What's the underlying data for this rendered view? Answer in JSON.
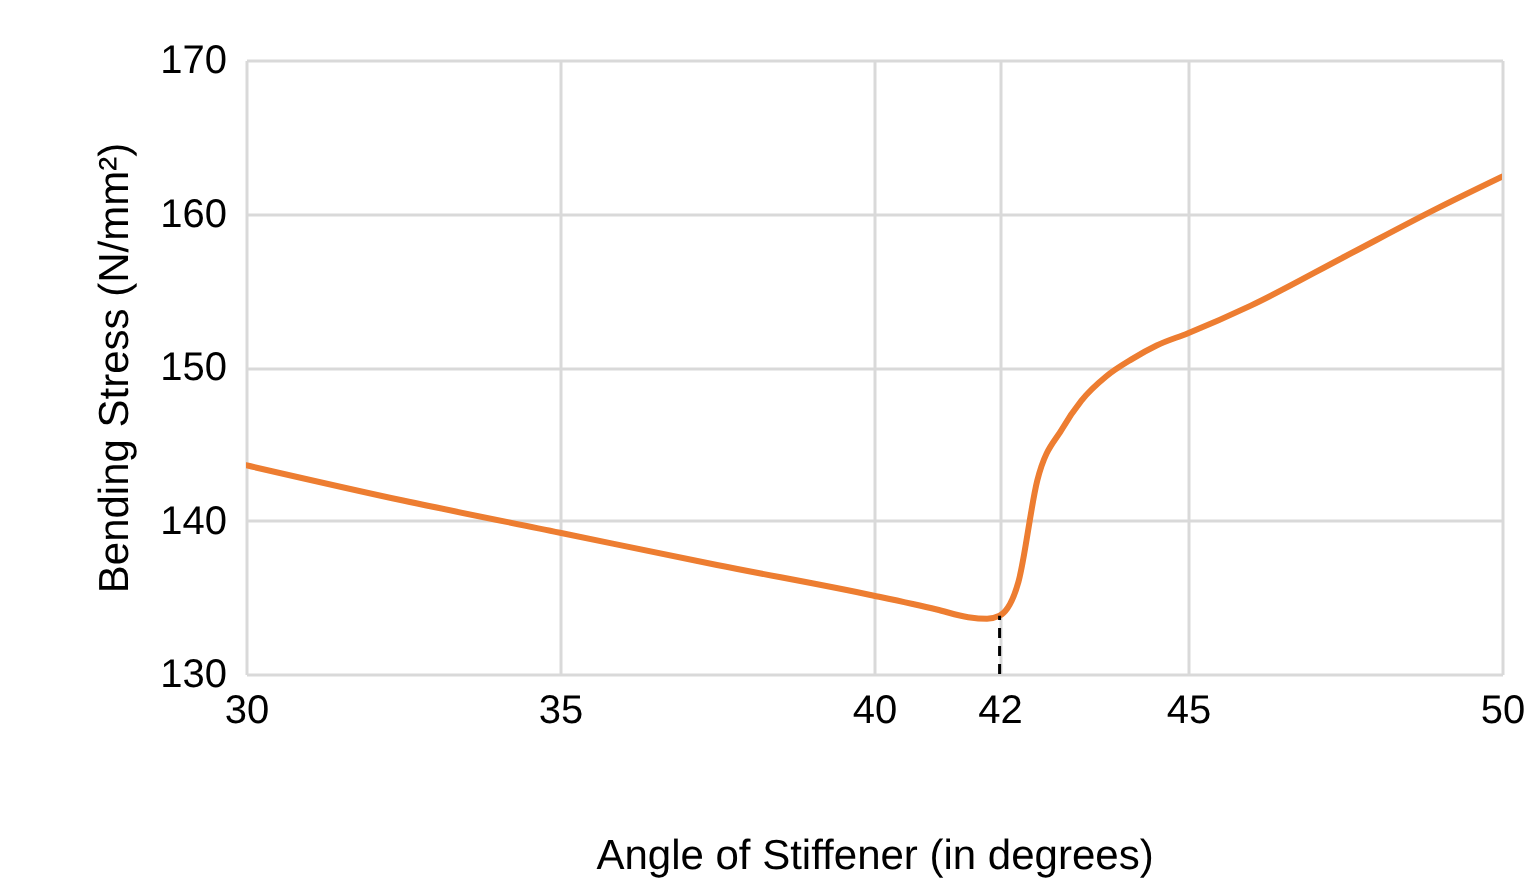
{
  "chart_data": {
    "type": "line",
    "xlabel": "Angle of Stiffener (in degrees)",
    "ylabel": "Bending Stress (N/mm²)",
    "x": [
      30,
      32.5,
      35,
      37.5,
      40,
      41,
      41.5,
      41.8,
      42,
      42.3,
      42.6,
      43,
      43.3,
      43.7,
      44.1,
      44.5,
      45,
      46,
      47.5,
      49,
      50
    ],
    "series": [
      {
        "color": "#ed7d31",
        "values": [
          143.6,
          141.3,
          139.2,
          137.1,
          135.1,
          134.2,
          133.7,
          133.6,
          133.8,
          136,
          142.6,
          146,
          147.8,
          149.4,
          150.5,
          151.4,
          152.2,
          154,
          157.2,
          160.4,
          162.4
        ]
      }
    ],
    "xlim": [
      30,
      50
    ],
    "ylim": [
      130,
      170
    ],
    "xticks": [
      30,
      35,
      40,
      42,
      45,
      50
    ],
    "yticks": [
      130,
      140,
      150,
      160,
      170
    ],
    "grid": true,
    "ref_lines": [
      {
        "axis": "x",
        "value": 42,
        "line_style": "dashed",
        "color": "#000000"
      }
    ]
  }
}
